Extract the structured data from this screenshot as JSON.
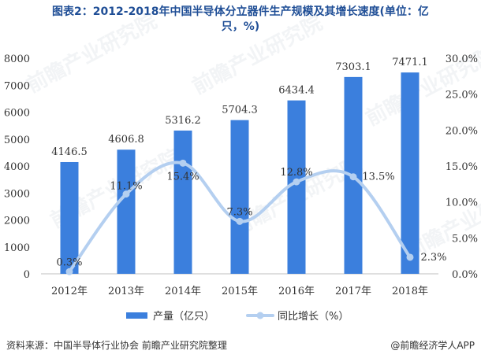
{
  "title_line1": "图表2：2012-2018年中国半导体分立器件生产规模及其增长速度(单位：亿",
  "title_line2": "只，%)",
  "watermark": "前瞻产业研究院",
  "source": "资料来源：中国半导体行业协会 前瞻产业研究院整理",
  "brand": "@前瞻经济学人APP",
  "colors": {
    "bar": "#3b7fdd",
    "line": "#b4cff0",
    "title": "#1f4e96"
  },
  "chart_data": {
    "type": "bar",
    "categories": [
      "2012年",
      "2013年",
      "2014年",
      "2015年",
      "2016年",
      "2017年",
      "2018年"
    ],
    "series": [
      {
        "name": "产量（亿只）",
        "type": "bar",
        "axis": "left",
        "values": [
          4146.5,
          4606.8,
          5316.2,
          5704.3,
          6434.4,
          7303.1,
          7471.1
        ],
        "labels": [
          "4146.5",
          "4606.8",
          "5316.2",
          "5704.3",
          "6434.4",
          "7303.1",
          "7471.1"
        ]
      },
      {
        "name": "同比增长（%）",
        "type": "line",
        "axis": "right",
        "values": [
          0.3,
          11.1,
          15.4,
          7.3,
          12.8,
          13.5,
          2.3
        ],
        "labels": [
          "0.3%",
          "11.1%",
          "15.4%",
          "7.3%",
          "12.8%",
          "13.5%",
          "2.3%"
        ]
      }
    ],
    "y_left": {
      "min": 0,
      "max": 8000,
      "ticks": [
        0,
        1000,
        2000,
        3000,
        4000,
        5000,
        6000,
        7000,
        8000
      ],
      "tick_labels": [
        "0",
        "1000",
        "2000",
        "3000",
        "4000",
        "5000",
        "6000",
        "7000",
        "8000"
      ]
    },
    "y_right": {
      "min": 0,
      "max": 30,
      "ticks": [
        0,
        5,
        10,
        15,
        20,
        25,
        30
      ],
      "tick_labels": [
        "0.0%",
        "5.0%",
        "10.0%",
        "15.0%",
        "20.0%",
        "25.0%",
        "30.0%"
      ]
    },
    "grid": false,
    "legend_position": "bottom"
  }
}
